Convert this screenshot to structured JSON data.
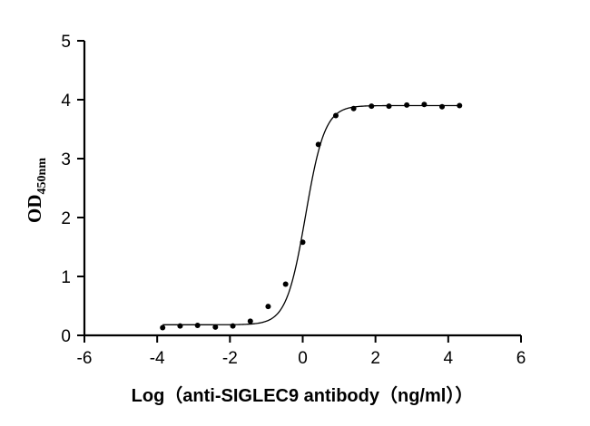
{
  "chart_data": {
    "type": "scatter",
    "title": "",
    "xlabel": "Log（anti-SIGLEC9 antibody（ng/ml））",
    "ylabel": "OD",
    "ylabel_subscript": "450nm",
    "xlim": [
      -6,
      6
    ],
    "ylim": [
      0,
      5
    ],
    "x_ticks": [
      -6,
      -4,
      -2,
      0,
      2,
      4,
      6
    ],
    "y_ticks": [
      0,
      1,
      2,
      3,
      4,
      5
    ],
    "grid": false,
    "legend": "none",
    "points": {
      "x": [
        -3.85,
        -3.37,
        -2.89,
        -2.4,
        -1.92,
        -1.44,
        -0.95,
        -0.47,
        0.0,
        0.43,
        0.91,
        1.4,
        1.89,
        2.37,
        2.86,
        3.34,
        3.83,
        4.31
      ],
      "y": [
        0.13,
        0.16,
        0.17,
        0.14,
        0.16,
        0.24,
        0.49,
        0.87,
        1.58,
        3.24,
        3.73,
        3.85,
        3.89,
        3.89,
        3.91,
        3.92,
        3.88,
        3.9
      ]
    },
    "fit_curve": {
      "model": "4PL",
      "bottom": 0.18,
      "top": 3.9,
      "log_ec50": 0.08,
      "hill_slope": 1.65,
      "x_range": [
        -3.85,
        4.31
      ]
    },
    "colors": {
      "points": "#000000",
      "curve": "#000000",
      "axes": "#000000"
    }
  }
}
